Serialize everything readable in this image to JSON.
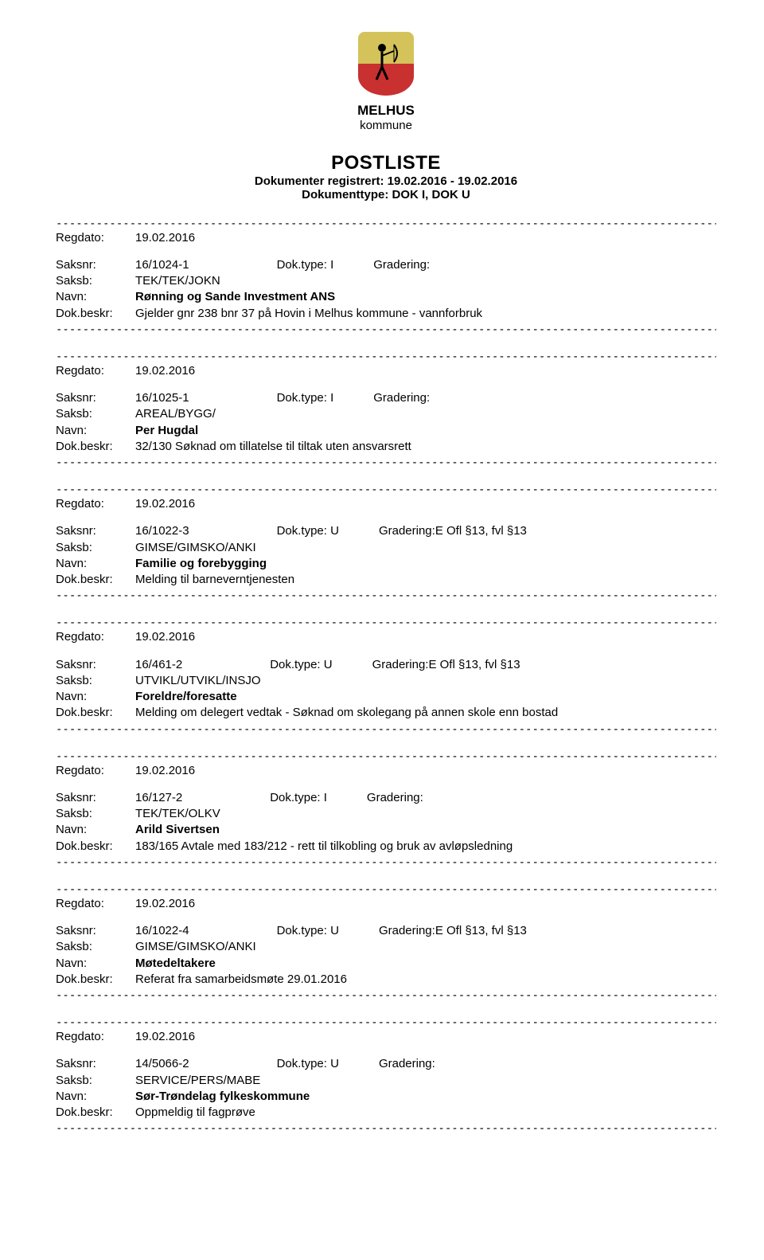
{
  "logo": {
    "name": "MELHUS",
    "sub": "kommune"
  },
  "header": {
    "title": "POSTLISTE",
    "subtitle1": "Dokumenter registrert: 19.02.2016 - 19.02.2016",
    "subtitle2": "Dokumenttype: DOK I, DOK U"
  },
  "labels": {
    "regdato": "Regdato:",
    "saksnr": "Saksnr:",
    "doktype": "Dok.type:",
    "gradering": "Gradering:",
    "saksb": "Saksb:",
    "navn": "Navn:",
    "dokbeskr": "Dok.beskr:"
  },
  "separator": "-------------------------------------------------------------------------------------------------------------------------",
  "entries": [
    {
      "regdato": "19.02.2016",
      "saksnr": "16/1024-1",
      "doktype": "I",
      "gradering": "",
      "saksb": "TEK/TEK/JOKN",
      "navn": "Rønning og Sande Investment ANS",
      "dokbeskr": "Gjelder gnr 238 bnr 37 på Hovin i Melhus kommune - vannforbruk"
    },
    {
      "regdato": "19.02.2016",
      "saksnr": "16/1025-1",
      "doktype": "I",
      "gradering": "",
      "saksb": "AREAL/BYGG/",
      "navn": "Per Hugdal",
      "dokbeskr": "32/130 Søknad om tillatelse til tiltak uten ansvarsrett"
    },
    {
      "regdato": "19.02.2016",
      "saksnr": "16/1022-3",
      "doktype": "U",
      "gradering": "E Ofl §13, fvl §13",
      "saksb": "GIMSE/GIMSKO/ANKI",
      "navn": "Familie og forebygging",
      "dokbeskr": "Melding til barneverntjenesten"
    },
    {
      "regdato": "19.02.2016",
      "saksnr": "16/461-2",
      "doktype": "U",
      "gradering": "E Ofl §13, fvl §13",
      "saksb": "UTVIKL/UTVIKL/INSJO",
      "navn": "Foreldre/foresatte",
      "dokbeskr": "Melding om delegert vedtak - Søknad om skolegang på annen skole enn bostad"
    },
    {
      "regdato": "19.02.2016",
      "saksnr": "16/127-2",
      "doktype": "I",
      "gradering": "",
      "saksb": "TEK/TEK/OLKV",
      "navn": "Arild Sivertsen",
      "dokbeskr": "183/165 Avtale med 183/212 - rett til tilkobling og bruk av avløpsledning"
    },
    {
      "regdato": "19.02.2016",
      "saksnr": "16/1022-4",
      "doktype": "U",
      "gradering": "E Ofl §13, fvl §13",
      "saksb": "GIMSE/GIMSKO/ANKI",
      "navn": "Møtedeltakere",
      "dokbeskr": "Referat fra samarbeidsmøte 29.01.2016"
    },
    {
      "regdato": "19.02.2016",
      "saksnr": "14/5066-2",
      "doktype": "U",
      "gradering": "",
      "saksb": "SERVICE/PERS/MABE",
      "navn": "Sør-Trøndelag fylkeskommune",
      "dokbeskr": "Oppmeldig til fagprøve"
    }
  ]
}
